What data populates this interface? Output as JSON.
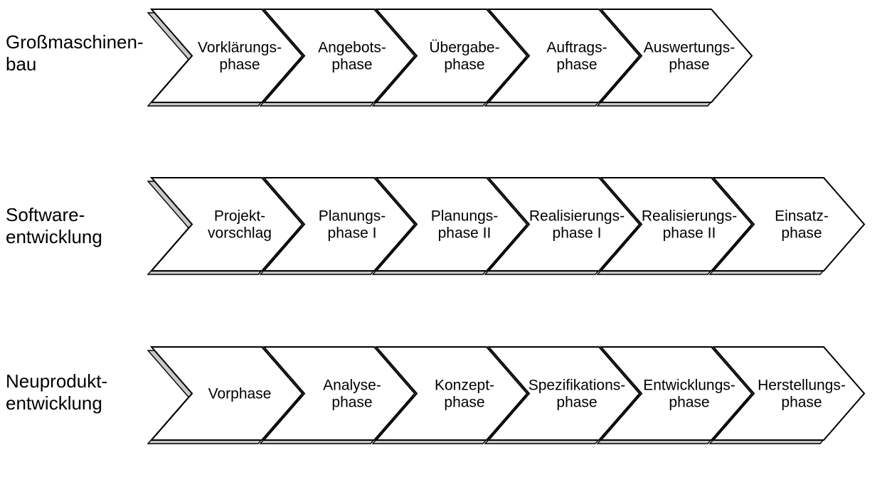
{
  "rows": [
    {
      "label": "Großmaschinen-\nbau",
      "phases": [
        [
          "Vorklärungs-",
          "phase"
        ],
        [
          "Angebots-",
          "phase"
        ],
        [
          "Übergabe-",
          "phase"
        ],
        [
          "Auftrags-",
          "phase"
        ],
        [
          "Auswertungs-",
          "phase"
        ]
      ]
    },
    {
      "label": "Software-\nentwicklung",
      "phases": [
        [
          "Projekt-",
          "vorschlag"
        ],
        [
          "Planungs-",
          "phase I"
        ],
        [
          "Planungs-",
          "phase II"
        ],
        [
          "Realisierungs-",
          "phase I"
        ],
        [
          "Realisierungs-",
          "phase II"
        ],
        [
          "Einsatz-",
          "phase"
        ]
      ]
    },
    {
      "label": "Neuprodukt-\nentwicklung",
      "phases": [
        [
          "Vorphase"
        ],
        [
          "Analyse-",
          "phase"
        ],
        [
          "Konzept-",
          "phase"
        ],
        [
          "Spezifikations-",
          "phase"
        ],
        [
          "Entwicklungs-",
          "phase"
        ],
        [
          "Herstellungs-",
          "phase"
        ]
      ]
    }
  ]
}
